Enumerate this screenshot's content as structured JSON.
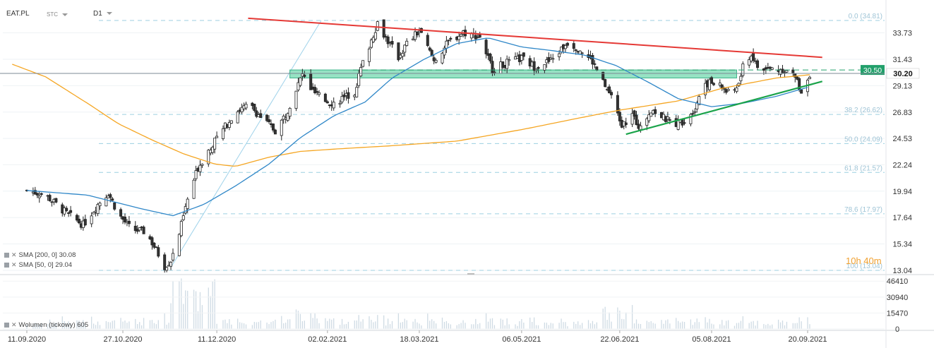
{
  "header": {
    "symbol": "EAT.PL",
    "chart_kind": "STC",
    "interval": "D1"
  },
  "indicators": [
    {
      "label": "SMA [200, 0] 30.08",
      "color": "#f5a623"
    },
    {
      "label": "SMA [50, 0] 29.04",
      "color": "#2f87c8"
    }
  ],
  "volume_label": "Wolumen (tickowy) 605",
  "countdown": "10h 40m",
  "colors": {
    "up_candle": "#ffffff",
    "down_candle": "#333333",
    "sma200": "#f5a623",
    "sma50": "#2f87c8",
    "resistance_line": "#e53935",
    "support_line": "#1aa34a",
    "zone": "#5fd3a5",
    "price_tag": "#22a06b",
    "current_tag": "#ffffff"
  },
  "chart_data": {
    "type": "candlestick",
    "title": "",
    "y_ticks": [
      33.73,
      31.43,
      29.13,
      26.83,
      24.53,
      22.24,
      19.94,
      17.64,
      15.34,
      13.04
    ],
    "ylim": [
      13.04,
      34.81
    ],
    "x_ticks": [
      "11.09.2020",
      "27.10.2020",
      "11.12.2020",
      "02.02.2021",
      "18.03.2021",
      "06.05.2021",
      "22.06.2021",
      "05.08.2021",
      "20.09.2021"
    ],
    "volume_ticks": [
      "46410",
      "30940",
      "15470",
      "0"
    ],
    "volume_ylim": [
      0,
      50000
    ],
    "fib_levels": [
      {
        "label": "0.0 (34.81)",
        "value": 34.81
      },
      {
        "label": "38.2 (26.62)",
        "value": 26.62
      },
      {
        "label": "50.0 (24.09)",
        "value": 24.09
      },
      {
        "label": "61.8 (21.57)",
        "value": 21.57
      },
      {
        "label": "78.6 (17.97)",
        "value": 17.97
      },
      {
        "label": "100 (13.04)",
        "value": 13.04
      }
    ],
    "price_tags": [
      {
        "label": "30.50",
        "value": 30.5
      },
      {
        "label": "30.20",
        "value": 30.2
      }
    ],
    "resistance": {
      "from": {
        "date": "2020-12-26",
        "value": 35.0
      },
      "to": {
        "date": "2021-09-27",
        "value": 31.6
      }
    },
    "support": {
      "from": {
        "date": "2021-06-25",
        "value": 24.9
      },
      "to": {
        "date": "2021-09-27",
        "value": 29.5
      }
    },
    "zone": {
      "from": "2021-01-15",
      "to": "2021-08-17",
      "low": 29.8,
      "high": 30.5
    },
    "anchors": {
      "close": [
        [
          "2020-09-11",
          20.0
        ],
        [
          "2020-09-20",
          19.6
        ],
        [
          "2020-09-30",
          18.0
        ],
        [
          "2020-10-08",
          17.0
        ],
        [
          "2020-10-15",
          18.8
        ],
        [
          "2020-10-20",
          19.8
        ],
        [
          "2020-10-25",
          17.9
        ],
        [
          "2020-10-31",
          16.6
        ],
        [
          "2020-11-07",
          16.4
        ],
        [
          "2020-11-12",
          14.8
        ],
        [
          "2020-11-16",
          13.4
        ],
        [
          "2020-11-19",
          13.9
        ],
        [
          "2020-11-22",
          15.5
        ],
        [
          "2020-11-27",
          19.2
        ],
        [
          "2020-12-02",
          22.0
        ],
        [
          "2020-12-08",
          23.8
        ],
        [
          "2020-12-14",
          25.3
        ],
        [
          "2020-12-20",
          26.9
        ],
        [
          "2020-12-27",
          27.4
        ],
        [
          "2021-01-02",
          26.2
        ],
        [
          "2021-01-08",
          25.2
        ],
        [
          "2021-01-13",
          26.6
        ],
        [
          "2021-01-17",
          28.4
        ],
        [
          "2021-01-21",
          30.1
        ],
        [
          "2021-01-26",
          28.6
        ],
        [
          "2021-01-31",
          27.9
        ],
        [
          "2021-02-05",
          27.6
        ],
        [
          "2021-02-10",
          28.1
        ],
        [
          "2021-02-15",
          28.6
        ],
        [
          "2021-02-18",
          30.6
        ],
        [
          "2021-02-22",
          32.6
        ],
        [
          "2021-02-26",
          34.6
        ],
        [
          "2021-03-03",
          33.0
        ],
        [
          "2021-03-08",
          31.6
        ],
        [
          "2021-03-12",
          32.8
        ],
        [
          "2021-03-18",
          33.9
        ],
        [
          "2021-03-25",
          31.3
        ],
        [
          "2021-04-01",
          32.9
        ],
        [
          "2021-04-08",
          33.8
        ],
        [
          "2021-04-16",
          33.4
        ],
        [
          "2021-04-22",
          30.6
        ],
        [
          "2021-04-29",
          31.1
        ],
        [
          "2021-05-06",
          31.5
        ],
        [
          "2021-05-12",
          30.8
        ],
        [
          "2021-05-20",
          31.3
        ],
        [
          "2021-05-28",
          32.9
        ],
        [
          "2021-06-03",
          32.3
        ],
        [
          "2021-06-09",
          31.2
        ],
        [
          "2021-06-14",
          29.4
        ],
        [
          "2021-06-18",
          28.0
        ],
        [
          "2021-06-23",
          25.6
        ],
        [
          "2021-06-28",
          26.6
        ],
        [
          "2021-07-02",
          25.4
        ],
        [
          "2021-07-07",
          27.1
        ],
        [
          "2021-07-13",
          26.3
        ],
        [
          "2021-07-18",
          25.8
        ],
        [
          "2021-07-23",
          26.1
        ],
        [
          "2021-07-28",
          27.2
        ],
        [
          "2021-08-01",
          29.4
        ],
        [
          "2021-08-06",
          29.3
        ],
        [
          "2021-08-10",
          29.0
        ],
        [
          "2021-08-14",
          28.3
        ],
        [
          "2021-08-18",
          29.3
        ],
        [
          "2021-08-21",
          31.4
        ],
        [
          "2021-08-24",
          31.8
        ],
        [
          "2021-08-28",
          30.4
        ],
        [
          "2021-09-02",
          30.6
        ],
        [
          "2021-09-09",
          30.5
        ],
        [
          "2021-09-14",
          29.9
        ],
        [
          "2021-09-17",
          28.6
        ],
        [
          "2021-09-21",
          30.2
        ]
      ],
      "sma50": [
        [
          "2020-09-11",
          20.0
        ],
        [
          "2020-10-10",
          19.6
        ],
        [
          "2020-11-05",
          18.4
        ],
        [
          "2020-11-20",
          17.8
        ],
        [
          "2020-12-05",
          18.8
        ],
        [
          "2020-12-20",
          20.4
        ],
        [
          "2021-01-05",
          22.3
        ],
        [
          "2021-01-20",
          24.6
        ],
        [
          "2021-02-05",
          26.5
        ],
        [
          "2021-02-20",
          27.7
        ],
        [
          "2021-03-05",
          29.8
        ],
        [
          "2021-03-20",
          31.4
        ],
        [
          "2021-04-05",
          32.8
        ],
        [
          "2021-04-20",
          33.3
        ],
        [
          "2021-05-06",
          32.5
        ],
        [
          "2021-05-20",
          32.2
        ],
        [
          "2021-06-05",
          31.8
        ],
        [
          "2021-06-20",
          30.9
        ],
        [
          "2021-07-05",
          29.5
        ],
        [
          "2021-07-20",
          28.0
        ],
        [
          "2021-08-05",
          27.3
        ],
        [
          "2021-08-20",
          27.6
        ],
        [
          "2021-09-05",
          28.2
        ],
        [
          "2021-09-21",
          29.04
        ]
      ],
      "sma200": [
        [
          "2020-09-04",
          31.0
        ],
        [
          "2020-09-20",
          29.9
        ],
        [
          "2020-10-10",
          27.6
        ],
        [
          "2020-10-25",
          25.8
        ],
        [
          "2020-11-10",
          24.4
        ],
        [
          "2020-11-25",
          23.2
        ],
        [
          "2020-12-10",
          22.3
        ],
        [
          "2020-12-20",
          22.1
        ],
        [
          "2021-01-05",
          22.9
        ],
        [
          "2021-01-20",
          23.4
        ],
        [
          "2021-02-05",
          23.6
        ],
        [
          "2021-03-05",
          23.9
        ],
        [
          "2021-04-05",
          24.3
        ],
        [
          "2021-05-06",
          25.3
        ],
        [
          "2021-06-05",
          26.4
        ],
        [
          "2021-06-22",
          27.0
        ],
        [
          "2021-07-20",
          27.8
        ],
        [
          "2021-08-10",
          28.9
        ],
        [
          "2021-09-05",
          29.8
        ],
        [
          "2021-09-21",
          30.08
        ]
      ]
    }
  }
}
